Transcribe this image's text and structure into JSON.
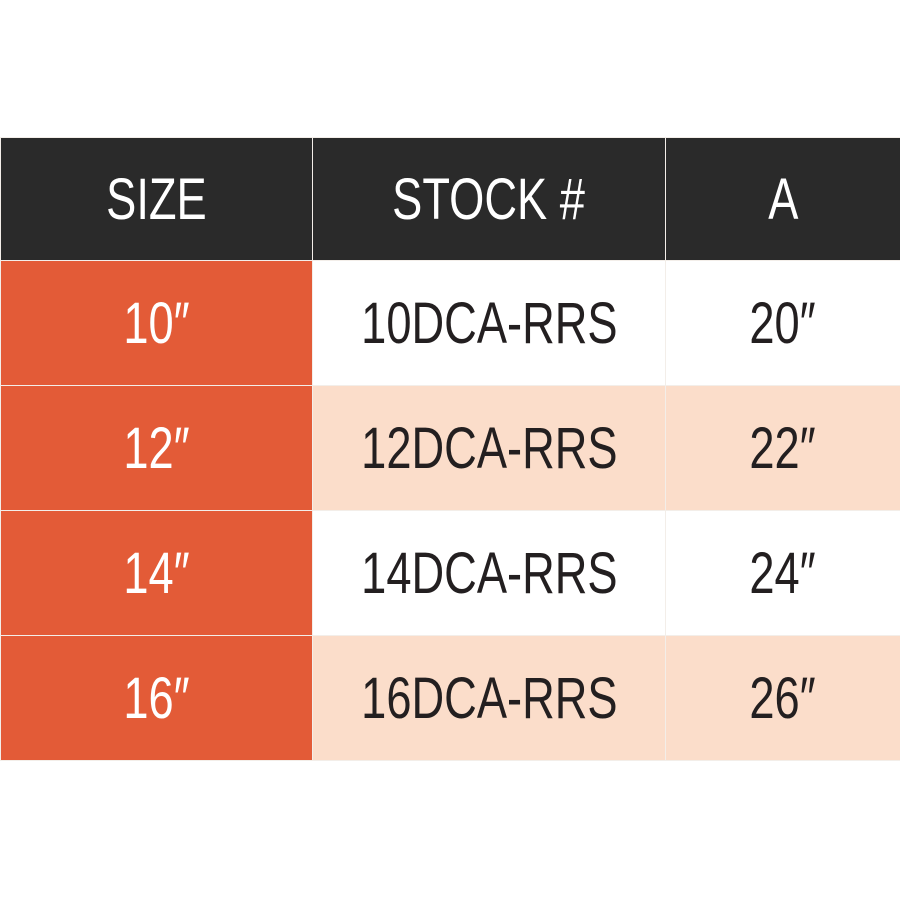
{
  "colors": {
    "header_bg": "#2a2a2a",
    "size_bg": "#e35b37",
    "row_alt_bg": "#fbddca",
    "row_bg": "#ffffff"
  },
  "headers": [
    "SIZE",
    "STOCK #",
    "A"
  ],
  "rows": [
    {
      "size": "10″",
      "stock": "10DCA-RRS",
      "a": "20″"
    },
    {
      "size": "12″",
      "stock": "12DCA-RRS",
      "a": "22″"
    },
    {
      "size": "14″",
      "stock": "14DCA-RRS",
      "a": "24″"
    },
    {
      "size": "16″",
      "stock": "16DCA-RRS",
      "a": "26″"
    }
  ]
}
